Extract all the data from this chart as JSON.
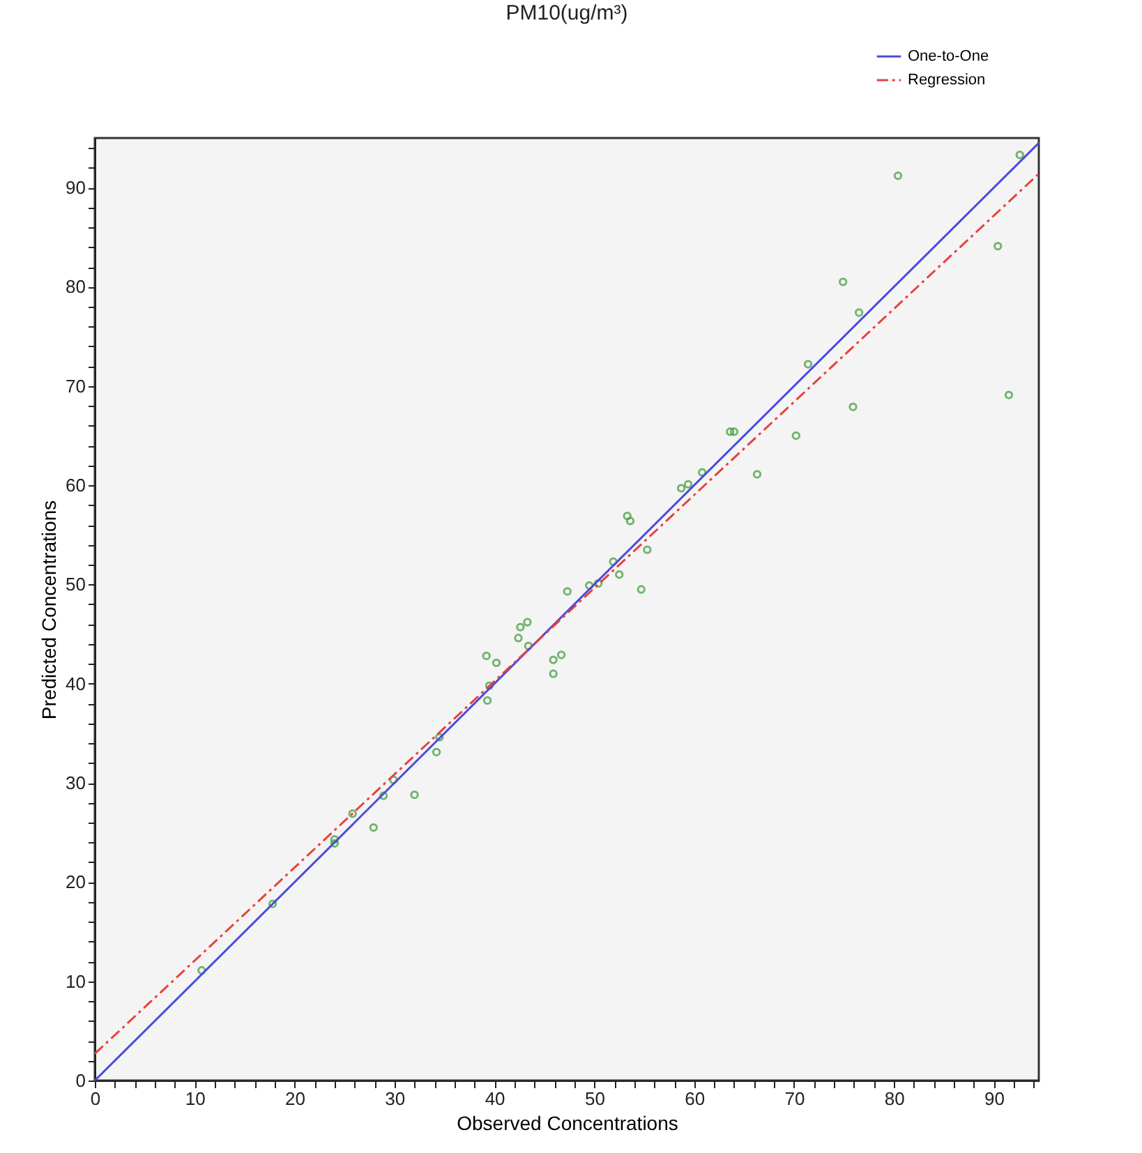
{
  "chart_data": {
    "type": "scatter",
    "title": "PM10(ug/m³)",
    "xlabel": "Observed Concentrations",
    "ylabel": "Predicted Concentrations",
    "xlim": [
      0,
      94.5
    ],
    "ylim": [
      0,
      95
    ],
    "xticks": [
      0,
      {
        "value": 2,
        "label": null
      },
      {
        "value": 4,
        "label": null
      },
      {
        "value": 6,
        "label": null
      },
      {
        "value": 8,
        "label": null
      },
      10,
      {
        "value": 12,
        "label": null
      },
      {
        "value": 14,
        "label": null
      },
      {
        "value": 16,
        "label": null
      },
      {
        "value": 18,
        "label": null
      },
      20,
      {
        "value": 22,
        "label": null
      },
      {
        "value": 24,
        "label": null
      },
      {
        "value": 26,
        "label": null
      },
      {
        "value": 28,
        "label": null
      },
      30,
      {
        "value": 32,
        "label": null
      },
      {
        "value": 34,
        "label": null
      },
      {
        "value": 36,
        "label": null
      },
      {
        "value": 38,
        "label": null
      },
      40,
      {
        "value": 42,
        "label": null
      },
      {
        "value": 44,
        "label": null
      },
      {
        "value": 46,
        "label": null
      },
      {
        "value": 48,
        "label": null
      },
      50,
      {
        "value": 52,
        "label": null
      },
      {
        "value": 54,
        "label": null
      },
      {
        "value": 56,
        "label": null
      },
      {
        "value": 58,
        "label": null
      },
      60,
      {
        "value": 62,
        "label": null
      },
      {
        "value": 64,
        "label": null
      },
      {
        "value": 66,
        "label": null
      },
      {
        "value": 68,
        "label": null
      },
      70,
      {
        "value": 72,
        "label": null
      },
      {
        "value": 74,
        "label": null
      },
      {
        "value": 76,
        "label": null
      },
      {
        "value": 78,
        "label": null
      },
      80,
      {
        "value": 82,
        "label": null
      },
      {
        "value": 84,
        "label": null
      },
      {
        "value": 86,
        "label": null
      },
      {
        "value": 88,
        "label": null
      },
      90,
      {
        "value": 92,
        "label": null
      },
      {
        "value": 94,
        "label": null
      }
    ],
    "yticks": [
      0,
      {
        "value": 2,
        "label": null
      },
      {
        "value": 4,
        "label": null
      },
      {
        "value": 6,
        "label": null
      },
      {
        "value": 8,
        "label": null
      },
      10,
      {
        "value": 12,
        "label": null
      },
      {
        "value": 14,
        "label": null
      },
      {
        "value": 16,
        "label": null
      },
      {
        "value": 18,
        "label": null
      },
      20,
      {
        "value": 22,
        "label": null
      },
      {
        "value": 24,
        "label": null
      },
      {
        "value": 26,
        "label": null
      },
      {
        "value": 28,
        "label": null
      },
      30,
      {
        "value": 32,
        "label": null
      },
      {
        "value": 34,
        "label": null
      },
      {
        "value": 36,
        "label": null
      },
      {
        "value": 38,
        "label": null
      },
      40,
      {
        "value": 42,
        "label": null
      },
      {
        "value": 44,
        "label": null
      },
      {
        "value": 46,
        "label": null
      },
      {
        "value": 48,
        "label": null
      },
      50,
      {
        "value": 52,
        "label": null
      },
      {
        "value": 54,
        "label": null
      },
      {
        "value": 56,
        "label": null
      },
      {
        "value": 58,
        "label": null
      },
      60,
      {
        "value": 62,
        "label": null
      },
      {
        "value": 64,
        "label": null
      },
      {
        "value": 66,
        "label": null
      },
      {
        "value": 68,
        "label": null
      },
      70,
      {
        "value": 72,
        "label": null
      },
      {
        "value": 74,
        "label": null
      },
      {
        "value": 76,
        "label": null
      },
      {
        "value": 78,
        "label": null
      },
      80,
      {
        "value": 82,
        "label": null
      },
      {
        "value": 84,
        "label": null
      },
      {
        "value": 86,
        "label": null
      },
      {
        "value": 88,
        "label": null
      },
      90,
      {
        "value": 92,
        "label": null
      },
      {
        "value": 94,
        "label": null
      }
    ],
    "grid": false,
    "legend": "top right",
    "marker": "circle",
    "series": [
      {
        "type": "scatter",
        "color": "#3a9a3a",
        "x": [
          10.7,
          17.8,
          24.0,
          24.0,
          25.8,
          27.9,
          28.9,
          29.9,
          32.0,
          34.2,
          34.5,
          39.3,
          39.5,
          39.2,
          40.2,
          42.4,
          42.6,
          43.3,
          43.4,
          45.9,
          45.9,
          46.7,
          47.3,
          49.5,
          50.4,
          51.9,
          52.5,
          54.7,
          53.3,
          53.6,
          55.3,
          58.7,
          59.4,
          60.8,
          66.3,
          63.6,
          64.0,
          70.2,
          71.4,
          75.9,
          74.9,
          76.5,
          80.4,
          90.4,
          91.5,
          92.6
        ],
        "values": [
          11.1,
          17.8,
          24.3,
          23.9,
          26.9,
          25.5,
          28.7,
          30.3,
          28.8,
          33.1,
          34.6,
          38.3,
          39.8,
          42.8,
          42.1,
          44.6,
          45.7,
          46.2,
          43.8,
          42.4,
          41.0,
          42.9,
          49.3,
          49.9,
          50.1,
          52.3,
          51.0,
          49.5,
          56.9,
          56.4,
          53.5,
          59.7,
          60.1,
          61.3,
          61.1,
          65.4,
          65.4,
          65.0,
          72.2,
          67.9,
          80.5,
          77.4,
          91.2,
          84.1,
          69.1,
          93.3
        ]
      },
      {
        "type": "line",
        "name": "One-to-One",
        "color": "#4a4ae0",
        "line_style": "solid",
        "marker": "none",
        "x": [
          0,
          94.5
        ],
        "values": [
          0,
          94.5
        ]
      },
      {
        "type": "line",
        "name": "Regression",
        "color": "#e8413c",
        "line_style": "dashed",
        "marker": "none",
        "x": [
          0,
          94.5
        ],
        "values": [
          2.7,
          91.4
        ]
      }
    ]
  }
}
